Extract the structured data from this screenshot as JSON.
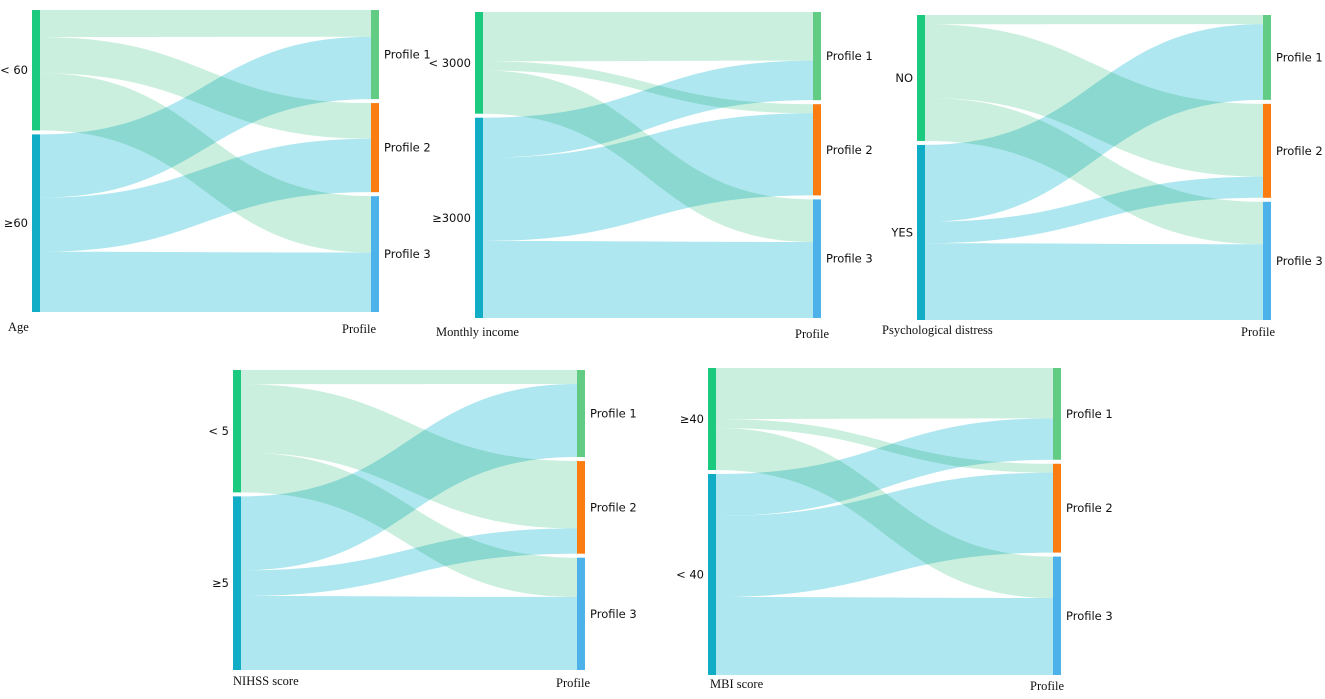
{
  "colors": {
    "left_top": "#1bca7f",
    "left_bottom": "#11acc6",
    "profile_1": "#63cc84",
    "profile_2": "#fb7d12",
    "profile_3": "#4db2ea",
    "flow_from_top": "#c6eedb",
    "flow_from_bottom": "#a7e5ee"
  },
  "chart_data": [
    {
      "type": "sankey",
      "title": "Age",
      "xlabel": "Age",
      "right_label": "Profile",
      "left_categories": [
        "< 60",
        "≥60"
      ],
      "right_categories": [
        "Profile 1",
        "Profile 2",
        "Profile 3"
      ],
      "flows": [
        {
          "from": "< 60",
          "to": "Profile 1",
          "value": 9
        },
        {
          "from": "< 60",
          "to": "Profile 2",
          "value": 12
        },
        {
          "from": "< 60",
          "to": "Profile 3",
          "value": 19
        },
        {
          "from": "≥60",
          "to": "Profile 1",
          "value": 21
        },
        {
          "from": "≥60",
          "to": "Profile 2",
          "value": 18
        },
        {
          "from": "≥60",
          "to": "Profile 3",
          "value": 20
        }
      ]
    },
    {
      "type": "sankey",
      "title": "Monthly income",
      "xlabel": "Monthly income",
      "right_label": "Profile",
      "left_categories": [
        "< 3000",
        "≥3000"
      ],
      "right_categories": [
        "Profile 1",
        "Profile 2",
        "Profile 3"
      ],
      "flows": [
        {
          "from": "< 3000",
          "to": "Profile 1",
          "value": 16
        },
        {
          "from": "< 3000",
          "to": "Profile 2",
          "value": 3
        },
        {
          "from": "< 3000",
          "to": "Profile 3",
          "value": 14
        },
        {
          "from": "≥3000",
          "to": "Profile 1",
          "value": 13
        },
        {
          "from": "≥3000",
          "to": "Profile 2",
          "value": 27
        },
        {
          "from": "≥3000",
          "to": "Profile 3",
          "value": 25
        }
      ]
    },
    {
      "type": "sankey",
      "title": "Psychological distress",
      "xlabel": "Psychological distress",
      "right_label": "Profile",
      "left_categories": [
        "NO",
        "YES"
      ],
      "right_categories": [
        "Profile 1",
        "Profile 2",
        "Profile 3"
      ],
      "flows": [
        {
          "from": "NO",
          "to": "Profile 1",
          "value": 3
        },
        {
          "from": "NO",
          "to": "Profile 2",
          "value": 24
        },
        {
          "from": "NO",
          "to": "Profile 3",
          "value": 14
        },
        {
          "from": "YES",
          "to": "Profile 1",
          "value": 25
        },
        {
          "from": "YES",
          "to": "Profile 2",
          "value": 7
        },
        {
          "from": "YES",
          "to": "Profile 3",
          "value": 25
        }
      ]
    },
    {
      "type": "sankey",
      "title": "NIHSS score",
      "xlabel": "NIHSS score",
      "right_label": "Profile",
      "left_categories": [
        "< 5",
        "≥5"
      ],
      "right_categories": [
        "Profile 1",
        "Profile 2",
        "Profile 3"
      ],
      "flows": [
        {
          "from": "< 5",
          "to": "Profile 1",
          "value": 5
        },
        {
          "from": "< 5",
          "to": "Profile 2",
          "value": 24
        },
        {
          "from": "< 5",
          "to": "Profile 3",
          "value": 14
        },
        {
          "from": "≥5",
          "to": "Profile 1",
          "value": 26
        },
        {
          "from": "≥5",
          "to": "Profile 2",
          "value": 9
        },
        {
          "from": "≥5",
          "to": "Profile 3",
          "value": 26
        }
      ]
    },
    {
      "type": "sankey",
      "title": "MBI score",
      "xlabel": "MBI score",
      "right_label": "Profile",
      "left_categories": [
        "≥40",
        "< 40"
      ],
      "right_categories": [
        "Profile 1",
        "Profile 2",
        "Profile 3"
      ],
      "flows": [
        {
          "from": "≥40",
          "to": "Profile 1",
          "value": 17
        },
        {
          "from": "≥40",
          "to": "Profile 2",
          "value": 3
        },
        {
          "from": "≥40",
          "to": "Profile 3",
          "value": 14
        },
        {
          "from": "< 40",
          "to": "Profile 1",
          "value": 14
        },
        {
          "from": "< 40",
          "to": "Profile 2",
          "value": 27
        },
        {
          "from": "< 40",
          "to": "Profile 3",
          "value": 26
        }
      ]
    }
  ]
}
